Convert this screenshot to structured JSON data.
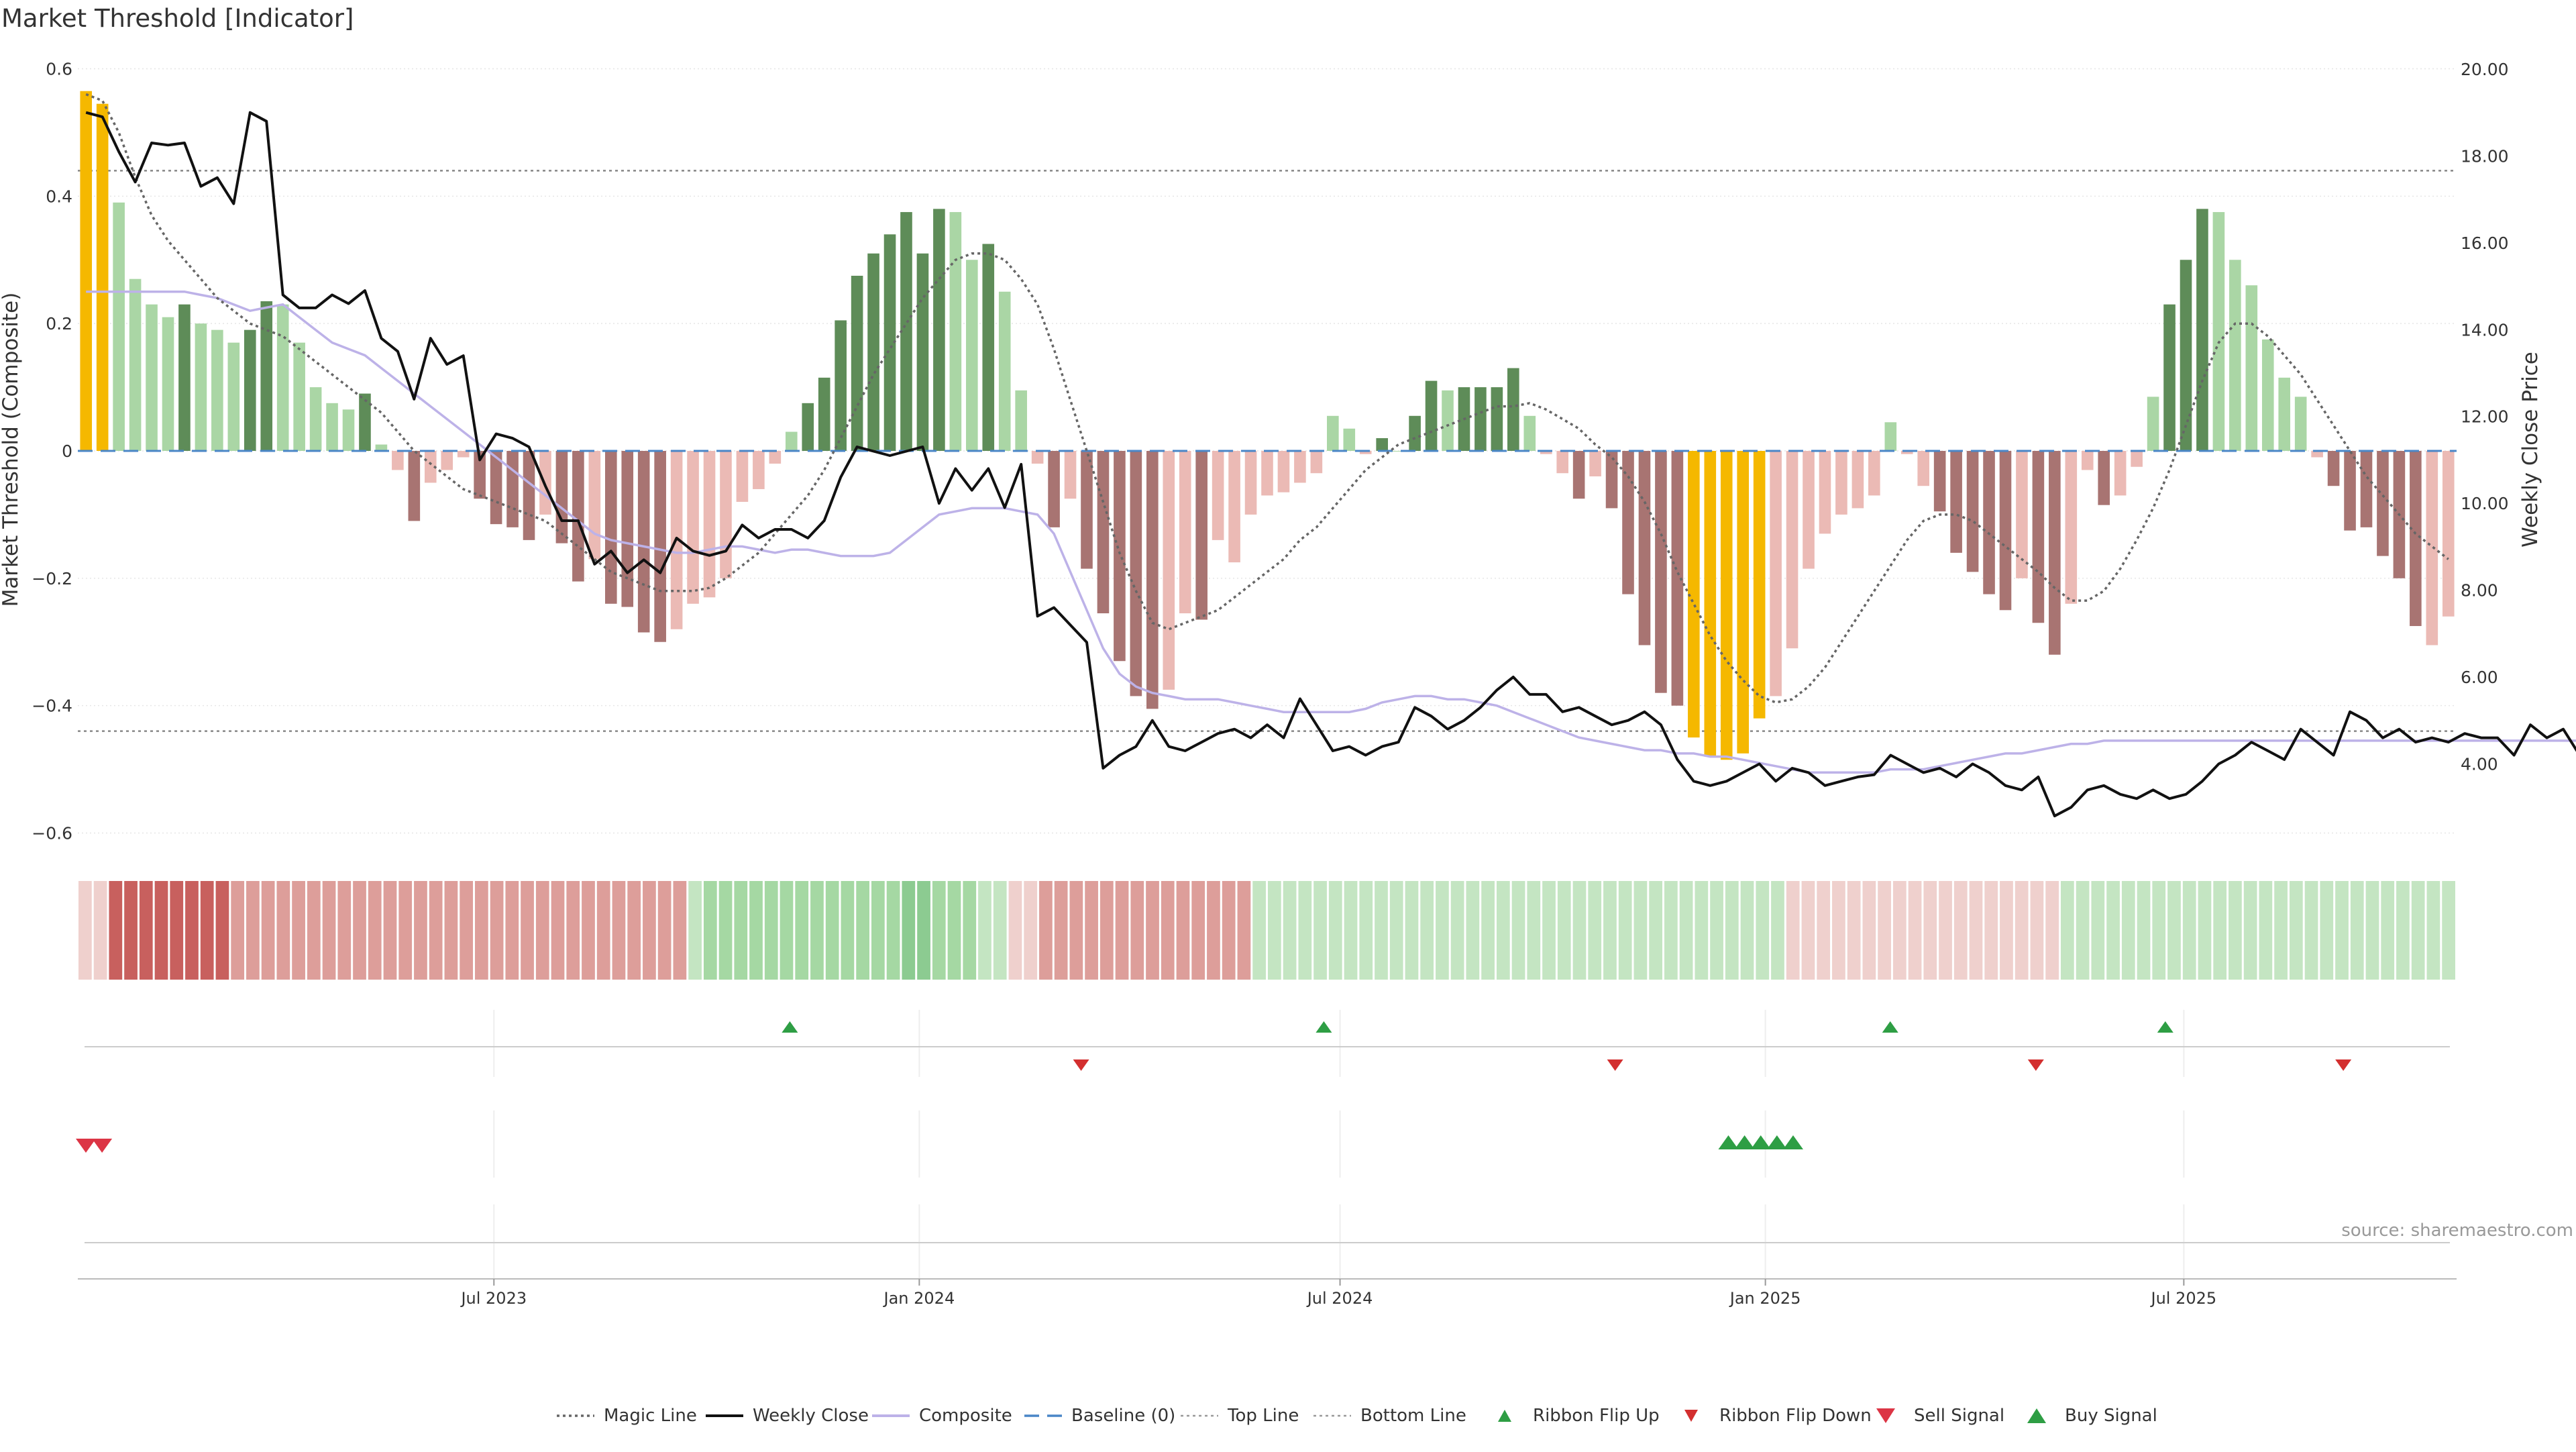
{
  "page": {
    "title": "Market Threshold [Indicator]"
  },
  "chart_data": {
    "type": "bar",
    "title": "Market Threshold [Indicator]",
    "source": "source: sharemaestro.com",
    "left_axis": {
      "label": "Market Threshold (Composite)",
      "range": [
        -0.6,
        0.6
      ],
      "ticks": [
        0.6,
        0.4,
        0.2,
        0,
        -0.2,
        -0.4,
        -0.6
      ],
      "tick_labels": [
        "0.6",
        "0.4",
        "0.2",
        "0",
        "−0.2",
        "−0.4",
        "−0.6"
      ],
      "top_line": 0.44,
      "bottom_line": -0.44
    },
    "right_axis": {
      "label": "Weekly Close Price",
      "range": [
        2.4,
        20.0
      ],
      "ticks": [
        20,
        18,
        16,
        14,
        12,
        10,
        8,
        6,
        4
      ],
      "tick_labels": [
        "20.00",
        "18.00",
        "16.00",
        "14.00",
        "12.00",
        "10.00",
        "8.00",
        "6.00",
        "4.00"
      ]
    },
    "x_axis": {
      "start": "2023-01-02",
      "end": "2025-10-27",
      "ticks": [
        "2023-07-01",
        "2024-01-01",
        "2024-07-01",
        "2025-01-01",
        "2025-07-01"
      ],
      "tick_labels": [
        "Jul 2023",
        "Jan 2024",
        "Jul 2024",
        "Jan 2025",
        "Jul 2025"
      ]
    },
    "colors": {
      "extreme": "#F5B800",
      "pos_strong": "#5E8C58",
      "pos_weak": "#AAD6A5",
      "neg_strong": "#A87472",
      "neg_weak": "#EBBAB5",
      "close": "#111111",
      "composite": "#BDB2E8",
      "magic": "#666666",
      "baseline": "#4A86C7",
      "ribbon_up": "#2E9E44",
      "ribbon_down": "#D32F2F",
      "sell": "#DC3545",
      "buy": "#2E9E44"
    },
    "bars": [
      0.565,
      0.545,
      0.39,
      0.27,
      0.23,
      0.21,
      0.23,
      0.2,
      0.19,
      0.17,
      0.19,
      0.235,
      0.23,
      0.17,
      0.1,
      0.075,
      0.065,
      0.09,
      0.01,
      -0.03,
      -0.11,
      -0.05,
      -0.03,
      -0.01,
      -0.075,
      -0.115,
      -0.12,
      -0.14,
      -0.1,
      -0.145,
      -0.205,
      -0.17,
      -0.24,
      -0.245,
      -0.285,
      -0.3,
      -0.28,
      -0.24,
      -0.23,
      -0.2,
      -0.08,
      -0.06,
      -0.02,
      0.03,
      0.075,
      0.115,
      0.205,
      0.275,
      0.31,
      0.34,
      0.375,
      0.31,
      0.38,
      0.375,
      0.3,
      0.325,
      0.25,
      0.095,
      -0.02,
      -0.12,
      -0.075,
      -0.185,
      -0.255,
      -0.33,
      -0.385,
      -0.405,
      -0.375,
      -0.255,
      -0.265,
      -0.14,
      -0.175,
      -0.1,
      -0.07,
      -0.065,
      -0.05,
      -0.035,
      0.055,
      0.035,
      -0.005,
      0.02,
      0.0,
      0.055,
      0.11,
      0.095,
      0.1,
      0.1,
      0.1,
      0.13,
      0.055,
      -0.005,
      -0.035,
      -0.075,
      -0.04,
      -0.09,
      -0.225,
      -0.305,
      -0.38,
      -0.4,
      -0.45,
      -0.48,
      -0.485,
      -0.475,
      -0.42,
      -0.385,
      -0.31,
      -0.185,
      -0.13,
      -0.1,
      -0.09,
      -0.07,
      0.045,
      -0.005,
      -0.055,
      -0.095,
      -0.16,
      -0.19,
      -0.225,
      -0.25,
      -0.2,
      -0.27,
      -0.32,
      -0.24,
      -0.03,
      -0.085,
      -0.07,
      -0.025,
      0.085,
      0.23,
      0.3,
      0.38,
      0.375,
      0.3,
      0.26,
      0.175,
      0.115,
      0.085,
      -0.01,
      -0.055,
      -0.125,
      -0.12,
      -0.165,
      -0.2,
      -0.275,
      -0.305,
      -0.26
    ],
    "bar_tiers": [
      3,
      3,
      1,
      1,
      1,
      1,
      2,
      1,
      1,
      1,
      2,
      2,
      1,
      1,
      1,
      1,
      1,
      2,
      1,
      1,
      2,
      1,
      1,
      1,
      2,
      2,
      2,
      2,
      1,
      2,
      2,
      1,
      2,
      2,
      2,
      2,
      1,
      1,
      1,
      1,
      1,
      1,
      1,
      1,
      2,
      2,
      2,
      2,
      2,
      2,
      2,
      2,
      2,
      1,
      1,
      2,
      1,
      1,
      1,
      2,
      1,
      2,
      2,
      2,
      2,
      2,
      1,
      1,
      2,
      1,
      1,
      1,
      1,
      1,
      1,
      1,
      1,
      1,
      1,
      2,
      1,
      2,
      2,
      1,
      2,
      2,
      2,
      2,
      1,
      1,
      1,
      2,
      1,
      2,
      2,
      2,
      2,
      2,
      3,
      3,
      3,
      3,
      3,
      1,
      1,
      1,
      1,
      1,
      1,
      1,
      1,
      1,
      1,
      2,
      2,
      2,
      2,
      2,
      1,
      2,
      2,
      1,
      1,
      2,
      1,
      1,
      1,
      2,
      2,
      2,
      1,
      1,
      1,
      1,
      1,
      1,
      1,
      2,
      2,
      2,
      2,
      2,
      2,
      1
    ],
    "weekly_close": [
      19.0,
      18.9,
      18.1,
      17.4,
      18.3,
      18.25,
      18.3,
      17.3,
      17.5,
      16.9,
      19.0,
      18.8,
      14.8,
      14.5,
      14.5,
      14.8,
      14.6,
      14.9,
      13.8,
      13.5,
      12.4,
      13.8,
      13.2,
      13.4,
      11.0,
      11.6,
      11.5,
      11.3,
      10.4,
      9.6,
      9.6,
      8.6,
      8.9,
      8.4,
      8.7,
      8.4,
      9.2,
      8.9,
      8.8,
      8.9,
      9.5,
      9.2,
      9.4,
      9.4,
      9.2,
      9.6,
      10.6,
      11.3,
      11.2,
      11.1,
      11.2,
      11.3,
      10.0,
      10.8,
      10.3,
      10.8,
      9.9,
      10.9,
      7.4,
      7.6,
      7.2,
      6.8,
      3.9,
      4.2,
      4.4,
      5.0,
      4.4,
      4.3,
      4.5,
      4.7,
      4.8,
      4.6,
      4.9,
      4.6,
      5.5,
      4.9,
      4.3,
      4.4,
      4.2,
      4.4,
      4.5,
      5.3,
      5.1,
      4.8,
      5.0,
      5.3,
      5.7,
      6.0,
      5.6,
      5.6,
      5.2,
      5.3,
      5.1,
      4.9,
      5.0,
      5.2,
      4.9,
      4.1,
      3.6,
      3.5,
      3.6,
      3.8,
      4.0,
      3.6,
      3.9,
      3.8,
      3.5,
      3.6,
      3.7,
      3.75,
      4.2,
      4.0,
      3.8,
      3.9,
      3.7,
      4.0,
      3.8,
      3.5,
      3.4,
      3.7,
      2.8,
      3.0,
      3.4,
      3.5,
      3.3,
      3.2,
      3.4,
      3.2,
      3.3,
      3.6,
      4.0,
      4.2,
      4.5,
      4.3,
      4.1,
      4.8,
      4.5,
      4.2,
      5.2,
      5.0,
      4.6,
      4.8,
      4.5,
      4.6,
      4.5,
      4.7,
      4.6,
      4.6,
      4.2,
      4.9,
      4.6,
      4.8,
      4.2,
      4.1,
      4.6
    ],
    "composite": [
      0.25,
      0.25,
      0.25,
      0.25,
      0.25,
      0.25,
      0.25,
      0.245,
      0.24,
      0.23,
      0.22,
      0.225,
      0.23,
      0.21,
      0.19,
      0.17,
      0.16,
      0.15,
      0.13,
      0.11,
      0.09,
      0.07,
      0.05,
      0.03,
      0.01,
      -0.01,
      -0.03,
      -0.05,
      -0.07,
      -0.09,
      -0.11,
      -0.13,
      -0.14,
      -0.145,
      -0.15,
      -0.155,
      -0.16,
      -0.16,
      -0.155,
      -0.15,
      -0.15,
      -0.155,
      -0.16,
      -0.155,
      -0.155,
      -0.16,
      -0.165,
      -0.165,
      -0.165,
      -0.16,
      -0.14,
      -0.12,
      -0.1,
      -0.095,
      -0.09,
      -0.09,
      -0.09,
      -0.095,
      -0.1,
      -0.13,
      -0.19,
      -0.25,
      -0.31,
      -0.35,
      -0.37,
      -0.38,
      -0.385,
      -0.39,
      -0.39,
      -0.39,
      -0.395,
      -0.4,
      -0.405,
      -0.41,
      -0.41,
      -0.41,
      -0.41,
      -0.41,
      -0.405,
      -0.395,
      -0.39,
      -0.385,
      -0.385,
      -0.39,
      -0.39,
      -0.395,
      -0.4,
      -0.41,
      -0.42,
      -0.43,
      -0.44,
      -0.45,
      -0.455,
      -0.46,
      -0.465,
      -0.47,
      -0.47,
      -0.475,
      -0.475,
      -0.48,
      -0.48,
      -0.485,
      -0.49,
      -0.495,
      -0.5,
      -0.505,
      -0.505,
      -0.505,
      -0.505,
      -0.505,
      -0.5,
      -0.5,
      -0.5,
      -0.495,
      -0.49,
      -0.485,
      -0.48,
      -0.475,
      -0.475,
      -0.47,
      -0.465,
      -0.46,
      -0.46,
      -0.455,
      -0.455,
      -0.455,
      -0.455,
      -0.455,
      -0.455,
      -0.455,
      -0.455,
      -0.455,
      -0.455,
      -0.455,
      -0.455,
      -0.455,
      -0.455,
      -0.455,
      -0.455,
      -0.455,
      -0.455,
      -0.455,
      -0.455,
      -0.455,
      -0.455,
      -0.455,
      -0.455,
      -0.455,
      -0.455,
      -0.455,
      -0.455,
      -0.455,
      -0.455,
      -0.455,
      -0.46,
      -0.46,
      -0.46,
      -0.46
    ],
    "magic_line": [
      0.56,
      0.55,
      0.5,
      0.43,
      0.37,
      0.33,
      0.3,
      0.27,
      0.24,
      0.22,
      0.2,
      0.19,
      0.18,
      0.16,
      0.14,
      0.12,
      0.1,
      0.08,
      0.06,
      0.03,
      0.0,
      -0.02,
      -0.04,
      -0.06,
      -0.07,
      -0.08,
      -0.09,
      -0.1,
      -0.11,
      -0.13,
      -0.15,
      -0.17,
      -0.19,
      -0.2,
      -0.21,
      -0.22,
      -0.22,
      -0.22,
      -0.215,
      -0.2,
      -0.18,
      -0.16,
      -0.13,
      -0.1,
      -0.07,
      -0.03,
      0.02,
      0.07,
      0.12,
      0.16,
      0.2,
      0.24,
      0.27,
      0.3,
      0.31,
      0.31,
      0.3,
      0.27,
      0.23,
      0.16,
      0.08,
      0.0,
      -0.08,
      -0.16,
      -0.22,
      -0.27,
      -0.28,
      -0.27,
      -0.26,
      -0.25,
      -0.23,
      -0.21,
      -0.19,
      -0.17,
      -0.14,
      -0.12,
      -0.09,
      -0.06,
      -0.03,
      -0.01,
      0.01,
      0.02,
      0.03,
      0.04,
      0.05,
      0.06,
      0.07,
      0.07,
      0.075,
      0.065,
      0.05,
      0.035,
      0.01,
      -0.01,
      -0.04,
      -0.08,
      -0.13,
      -0.19,
      -0.24,
      -0.29,
      -0.33,
      -0.36,
      -0.385,
      -0.395,
      -0.39,
      -0.37,
      -0.34,
      -0.3,
      -0.26,
      -0.22,
      -0.18,
      -0.14,
      -0.11,
      -0.1,
      -0.1,
      -0.11,
      -0.13,
      -0.15,
      -0.17,
      -0.19,
      -0.215,
      -0.235,
      -0.235,
      -0.22,
      -0.185,
      -0.14,
      -0.09,
      -0.03,
      0.04,
      0.11,
      0.17,
      0.2,
      0.2,
      0.18,
      0.15,
      0.12,
      0.08,
      0.04,
      0.0,
      -0.04,
      -0.07,
      -0.1,
      -0.13,
      -0.15,
      -0.17
    ],
    "ribbon": {
      "tiers": [
        -1,
        -1,
        -3,
        -3,
        -3,
        -3,
        -3,
        -3,
        -3,
        -3,
        -2,
        -2,
        -2,
        -2,
        -2,
        -2,
        -2,
        -2,
        -2,
        -2,
        -2,
        -2,
        -2,
        -2,
        -2,
        -2,
        -2,
        -2,
        -2,
        -2,
        -2,
        -2,
        -2,
        -2,
        -2,
        -2,
        -2,
        -2,
        -2,
        -2,
        1,
        2,
        2,
        2,
        2,
        2,
        2,
        2,
        2,
        2,
        2,
        2,
        2,
        2,
        3,
        3,
        2,
        2,
        2,
        1,
        1,
        -1,
        -1,
        -2,
        -2,
        -2,
        -2,
        -2,
        -2,
        -2,
        -2,
        -2,
        -2,
        -2,
        -2,
        -2,
        -2,
        1,
        1,
        1,
        1,
        1,
        1,
        1,
        1,
        1,
        1,
        1,
        1,
        1,
        1,
        1,
        1,
        1,
        1,
        1,
        1,
        1,
        1,
        1,
        1,
        1,
        1,
        1,
        1,
        1,
        1,
        1,
        1,
        1,
        1,
        1,
        -1,
        -1,
        -1,
        -1,
        -1,
        -1,
        -1,
        -1,
        -1,
        -1,
        -1,
        -1,
        -1,
        -1,
        -1,
        -1,
        -1,
        -1,
        1,
        1,
        1,
        1,
        1,
        1,
        1,
        1,
        1,
        1,
        1,
        1,
        1,
        1,
        1,
        1,
        1,
        1,
        1,
        1,
        1,
        1,
        1,
        1,
        1,
        1
      ],
      "labels": []
    },
    "ribbon_flip_up_dates": [
      "2023-11-06",
      "2024-06-24",
      "2025-02-24",
      "2025-06-23"
    ],
    "ribbon_flip_down_dates": [
      "2024-03-11",
      "2024-10-28",
      "2025-04-28",
      "2025-09-08"
    ],
    "sell_signal_dates": [
      "2023-01-02",
      "2023-01-09"
    ],
    "buy_signal_dates": [
      "2024-12-16",
      "2024-12-23",
      "2024-12-30",
      "2025-01-06",
      "2025-01-13"
    ],
    "legend": [
      {
        "label": "Magic Line",
        "kind": "dotted"
      },
      {
        "label": "Weekly Close",
        "kind": "solid"
      },
      {
        "label": "Composite",
        "kind": "composite"
      },
      {
        "label": "Baseline (0)",
        "kind": "dashed"
      },
      {
        "label": "Top Line",
        "kind": "thin-dotted"
      },
      {
        "label": "Bottom Line",
        "kind": "thin-dotted"
      },
      {
        "label": "Ribbon Flip Up",
        "kind": "tri-up"
      },
      {
        "label": "Ribbon Flip Down",
        "kind": "tri-down"
      },
      {
        "label": "Sell Signal",
        "kind": "sell"
      },
      {
        "label": "Buy Signal",
        "kind": "buy"
      }
    ]
  }
}
